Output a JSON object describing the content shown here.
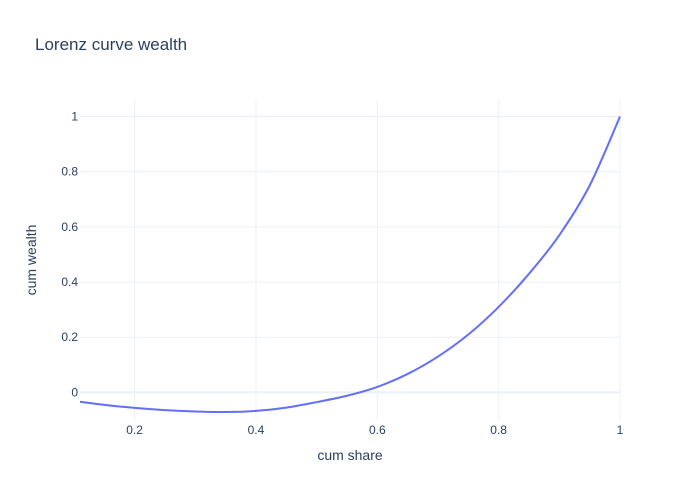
{
  "chart_data": {
    "type": "line",
    "title": "Lorenz curve wealth",
    "xlabel": "cum share",
    "ylabel": "cum wealth",
    "xlim": [
      0.11,
      1.0
    ],
    "ylim": [
      -0.1,
      1.06
    ],
    "xticks": [
      0.2,
      0.4,
      0.6,
      0.8,
      1
    ],
    "xtick_labels": [
      "0.2",
      "0.4",
      "0.6",
      "0.8",
      "1"
    ],
    "yticks": [
      0,
      0.2,
      0.4,
      0.6,
      0.8,
      1
    ],
    "ytick_labels": [
      "0",
      "0.2",
      "0.4",
      "0.6",
      "0.8",
      "1"
    ],
    "grid": true,
    "series": [
      {
        "color": "#636efa",
        "x": [
          0.11,
          0.15,
          0.2,
          0.25,
          0.3,
          0.35,
          0.4,
          0.45,
          0.5,
          0.55,
          0.6,
          0.65,
          0.7,
          0.75,
          0.8,
          0.85,
          0.9,
          0.95,
          1.0
        ],
        "y": [
          -0.034,
          -0.045,
          -0.056,
          -0.064,
          -0.069,
          -0.071,
          -0.067,
          -0.055,
          -0.035,
          -0.012,
          0.02,
          0.067,
          0.13,
          0.21,
          0.31,
          0.43,
          0.57,
          0.75,
          1.0
        ]
      }
    ]
  },
  "colors": {
    "line": "#636efa",
    "grid": "#ebf0f8",
    "text": "#2a3f5f",
    "zeroline": "#ebf0f8"
  }
}
